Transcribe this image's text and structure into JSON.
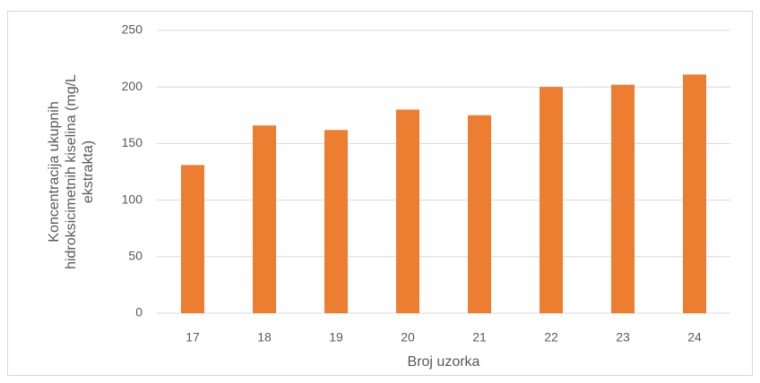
{
  "chart_data": {
    "type": "bar",
    "ylabel": [
      "Koncentracija ukupnih",
      "hidroksicimetnih kiselina (mg/L",
      "ekstrakta)"
    ],
    "xlabel": "Broj uzorka",
    "categories": [
      "17",
      "18",
      "19",
      "20",
      "21",
      "22",
      "23",
      "24"
    ],
    "values": [
      131,
      166,
      162,
      180,
      175,
      200,
      202,
      211
    ],
    "color": "#ed7d31",
    "ylim": [
      0,
      250
    ],
    "yticks": [
      0,
      50,
      100,
      150,
      200,
      250
    ],
    "grid": true
  }
}
